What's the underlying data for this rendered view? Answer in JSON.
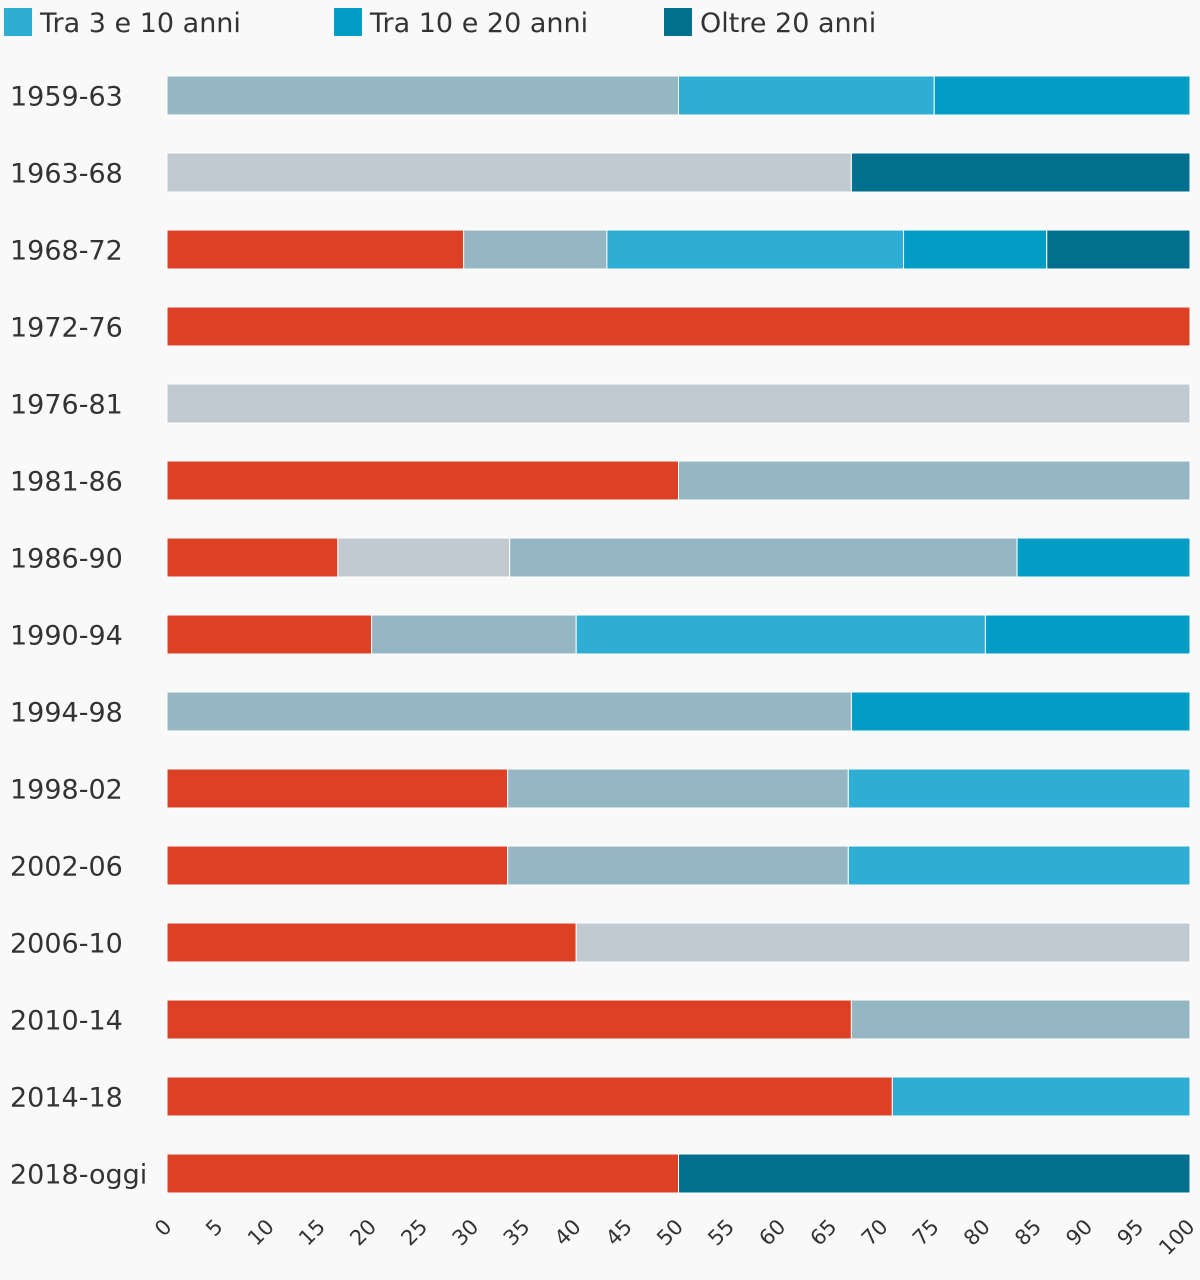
{
  "chart_data": {
    "type": "bar",
    "orientation": "horizontal",
    "stacked": true,
    "xlim": [
      0,
      100
    ],
    "x_ticks": [
      0,
      5,
      10,
      15,
      20,
      25,
      30,
      35,
      40,
      45,
      50,
      55,
      60,
      65,
      70,
      75,
      80,
      85,
      90,
      95,
      100
    ],
    "grid": false,
    "legend_position": "top",
    "categories": [
      "1959-63",
      "1963-68",
      "1968-72",
      "1972-76",
      "1976-81",
      "1981-86",
      "1986-90",
      "1990-94",
      "1994-98",
      "1998-02",
      "2002-06",
      "2006-10",
      "2010-14",
      "2014-18",
      "2018-oggi"
    ],
    "series": [
      {
        "color": "#dd4125",
        "values": [
          0,
          0,
          29,
          100,
          0,
          50,
          16.7,
          20,
          0,
          33.3,
          33.3,
          40,
          66.9,
          70.9,
          50
        ]
      },
      {
        "color": "#c0cad0",
        "values": [
          0,
          66.9,
          0,
          0,
          100,
          0,
          16.8,
          0,
          0,
          0,
          0,
          60,
          0,
          0,
          0
        ]
      },
      {
        "color": "#94b7c3",
        "values": [
          50,
          0,
          14,
          0,
          0,
          50,
          49.6,
          20,
          66.9,
          33.3,
          33.3,
          0,
          33.1,
          0,
          0
        ]
      },
      {
        "name": "Tra 3 e 10 anni",
        "color": "#2eadd5",
        "values": [
          25,
          0,
          29,
          0,
          0,
          0,
          0,
          40,
          0,
          33.4,
          33.4,
          0,
          0,
          29.1,
          0
        ]
      },
      {
        "name": "Tra 10 e 20 anni",
        "color": "#029dc6",
        "values": [
          25,
          0,
          14,
          0,
          0,
          0,
          16.9,
          20,
          33.1,
          0,
          0,
          0,
          0,
          0,
          0
        ]
      },
      {
        "name": "Oltre 20 anni",
        "color": "#026f8f",
        "values": [
          0,
          33.1,
          14,
          0,
          0,
          0,
          0,
          0,
          0,
          0,
          0,
          0,
          0,
          0,
          50
        ]
      }
    ]
  }
}
